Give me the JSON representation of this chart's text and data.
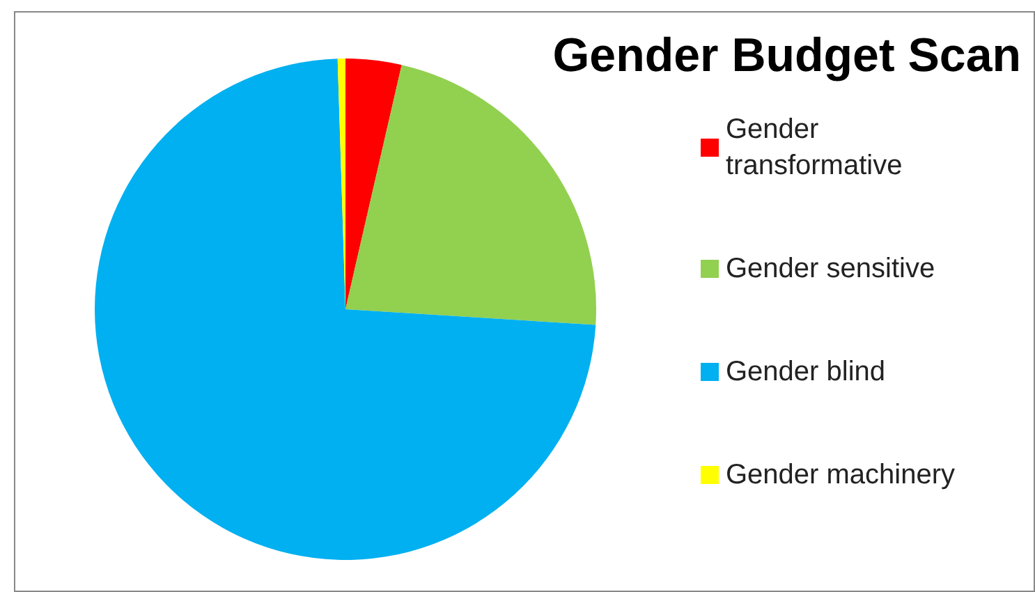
{
  "chart_data": {
    "type": "pie",
    "title": "Gender Budget Scan",
    "categories": [
      "Gender transformative",
      "Gender sensitive",
      "Gender blind",
      "Gender machinery"
    ],
    "values": [
      3.6,
      22.4,
      73.5,
      0.5
    ],
    "colors": [
      "#ff0000",
      "#92d050",
      "#00b0f0",
      "#ffff00"
    ],
    "legend": "right"
  }
}
